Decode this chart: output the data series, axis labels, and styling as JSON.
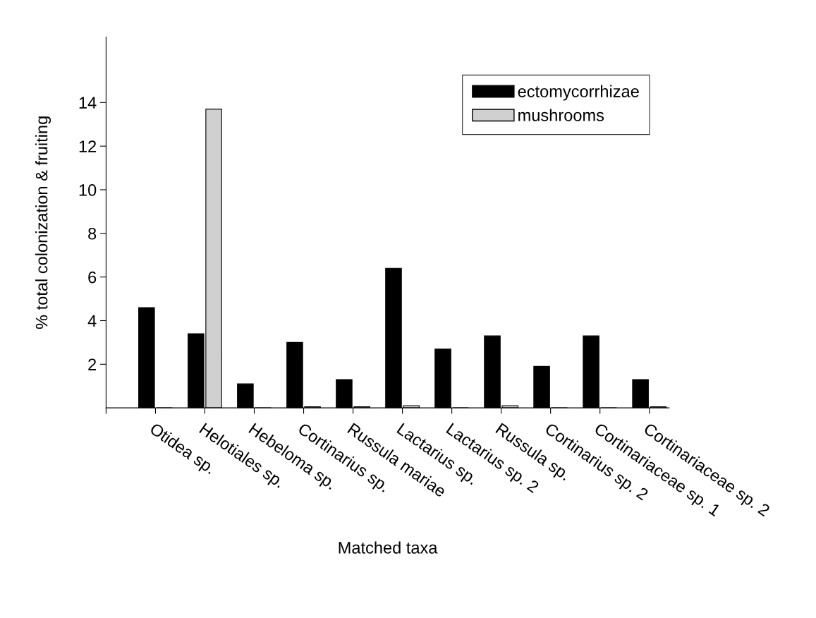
{
  "chart_data": {
    "type": "bar",
    "xlabel": "Matched taxa",
    "ylabel": "% total colonization & fruiting",
    "categories": [
      "Otidea sp.",
      "Helotiales sp.",
      "Hebeloma sp.",
      "Cortinarius sp.",
      "Russula mariae",
      "Lactarius sp.",
      "Lactarius sp. 2",
      "Russula sp.",
      "Cortinarius sp. 2",
      "Cortinariaceae sp. 1",
      "Cortinariaceae sp. 2"
    ],
    "series": [
      {
        "name": "ectomycorrhizae",
        "color": "#000000",
        "values": [
          4.6,
          3.4,
          1.1,
          3.0,
          1.3,
          6.4,
          2.7,
          3.3,
          1.9,
          3.3,
          1.3
        ]
      },
      {
        "name": "mushrooms",
        "color": "#d0d0d0",
        "values": [
          0,
          13.7,
          0,
          0.05,
          0.05,
          0.1,
          0,
          0.1,
          0,
          0,
          0.05
        ]
      }
    ],
    "ylim": [
      0,
      17
    ],
    "yticks": [
      2,
      4,
      6,
      8,
      10,
      12,
      14
    ],
    "grid": false,
    "legend": "top right"
  }
}
